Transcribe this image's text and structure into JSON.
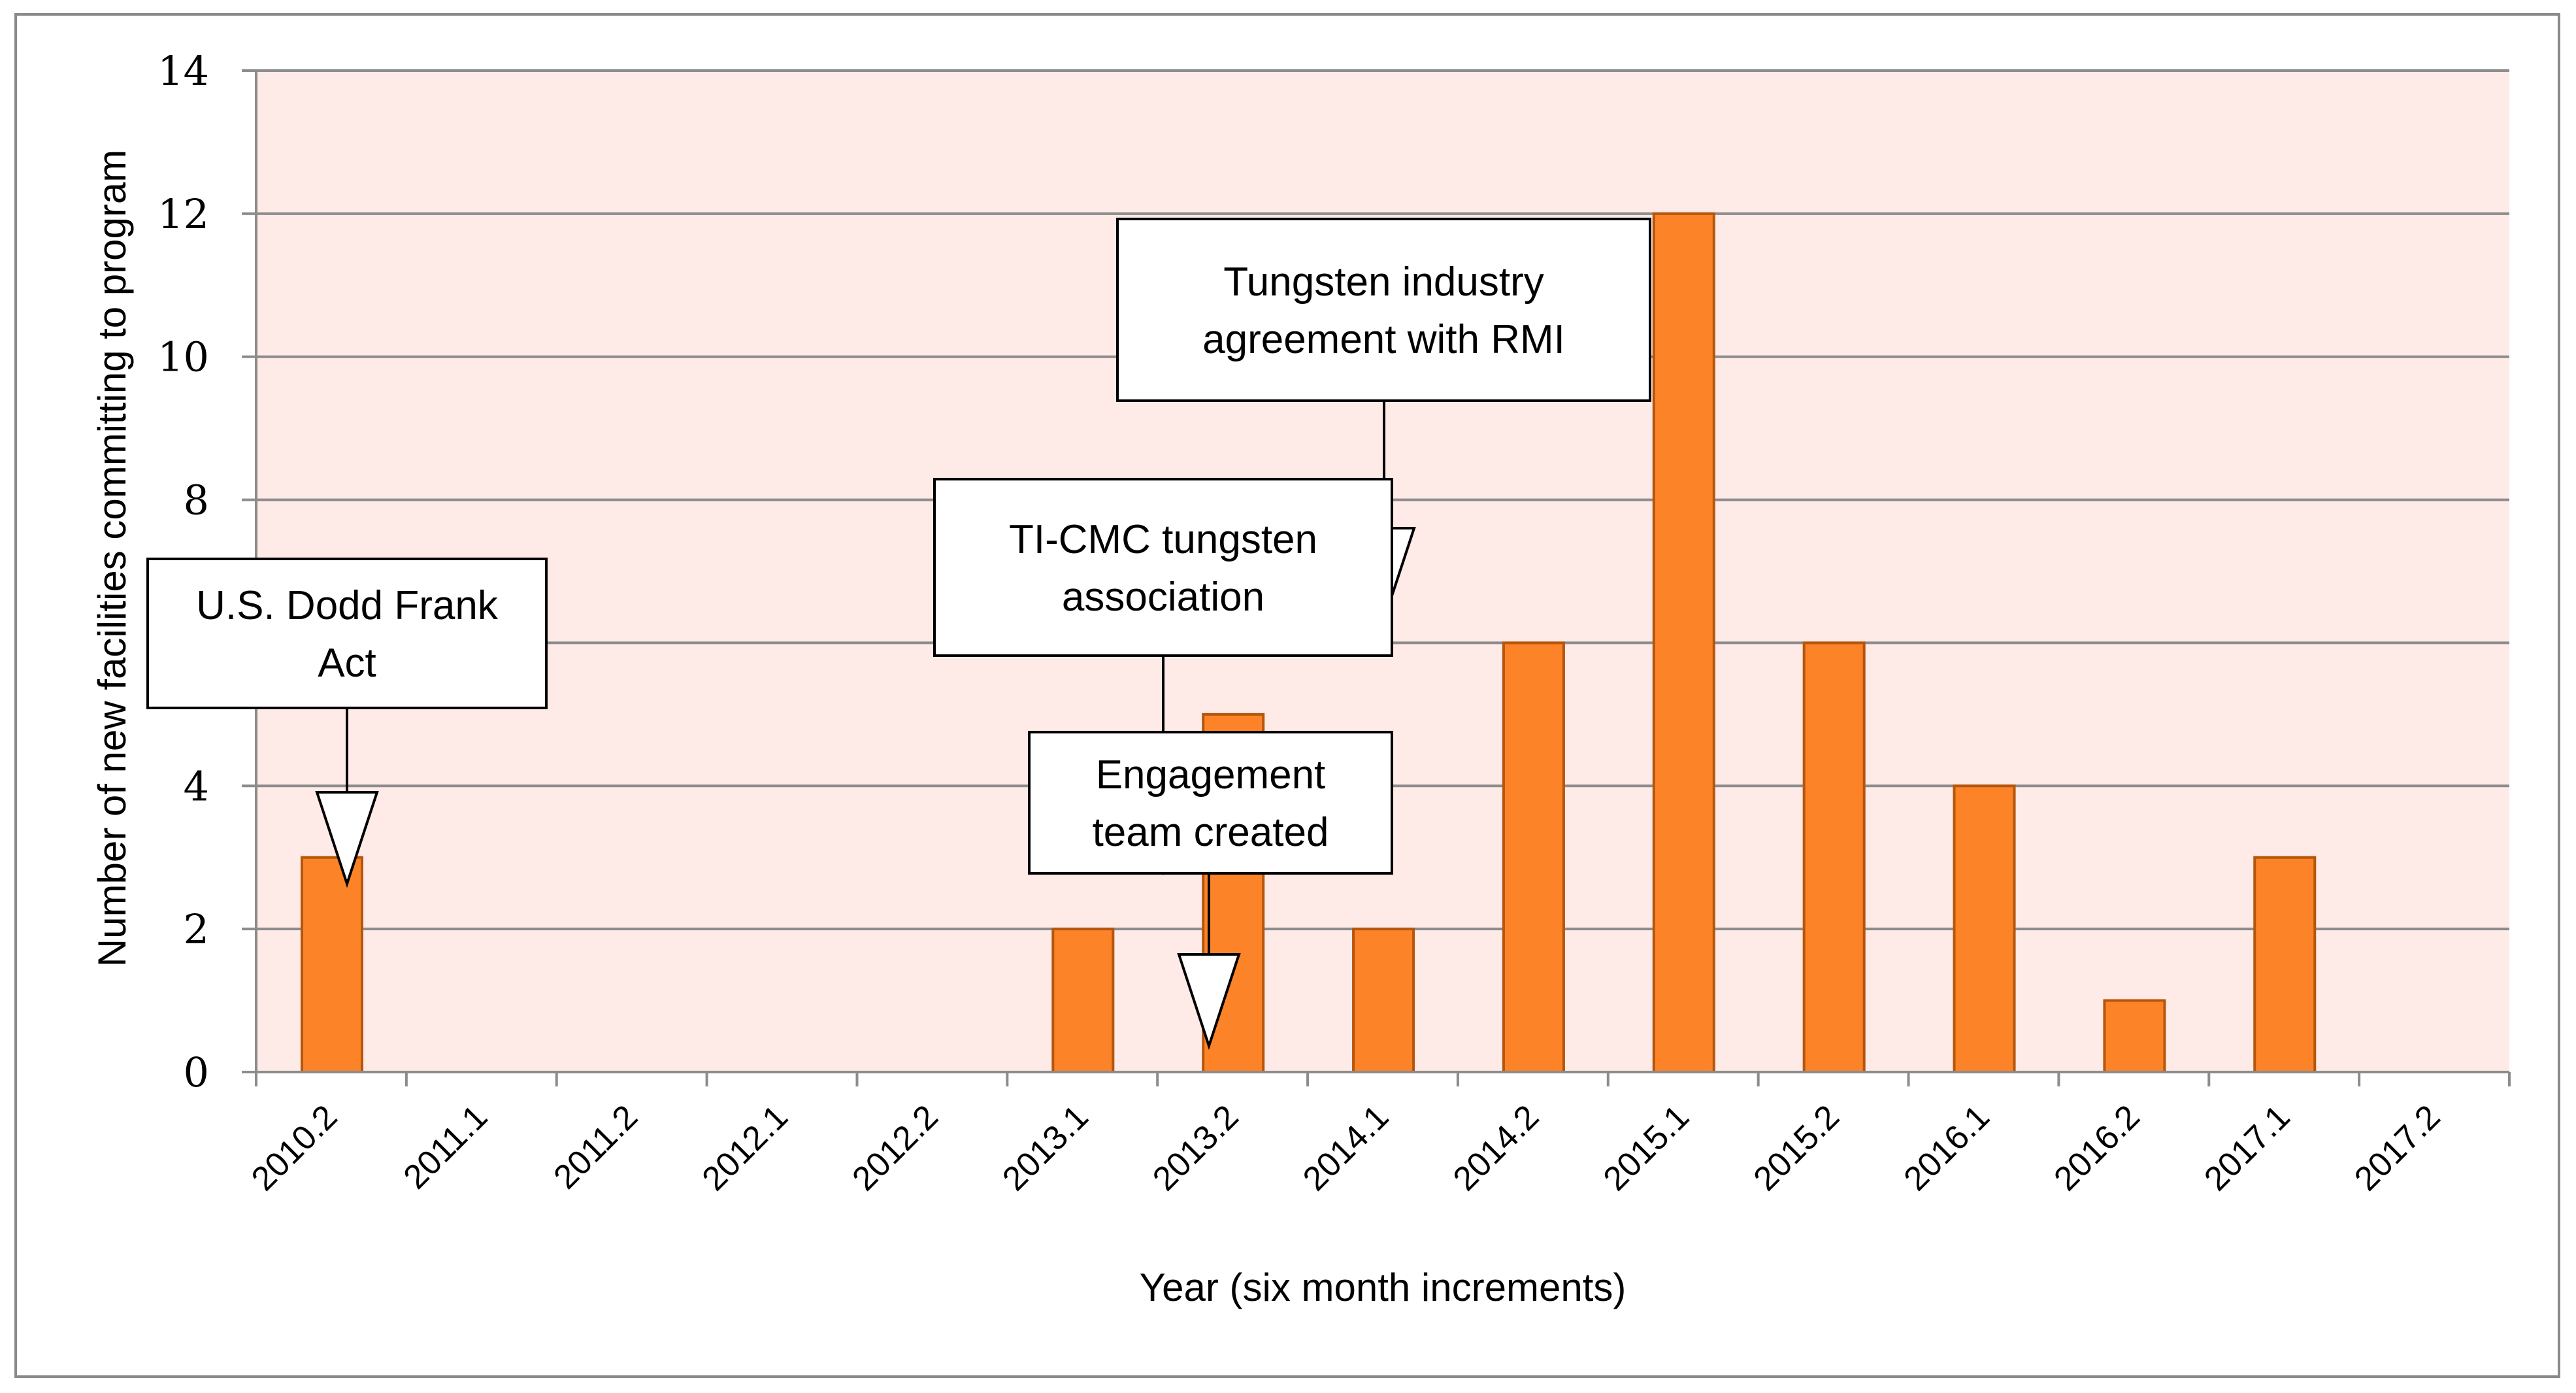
{
  "chart_data": {
    "type": "bar",
    "categories": [
      "2010.2",
      "2011.1",
      "2011.2",
      "2012.1",
      "2012.2",
      "2013.1",
      "2013.2",
      "2014.1",
      "2014.2",
      "2015.1",
      "2015.2",
      "2016.1",
      "2016.2",
      "2017.1",
      "2017.2"
    ],
    "values": [
      3,
      0,
      0,
      0,
      0,
      2,
      5,
      2,
      6,
      12,
      6,
      4,
      1,
      3,
      0
    ],
    "title": "",
    "xlabel": "Year (six month increments)",
    "ylabel": "Number of new facilities committing to program",
    "ylim": [
      0,
      14
    ],
    "yticks": [
      0,
      2,
      4,
      6,
      8,
      10,
      12,
      14
    ],
    "ytick_labels": [
      "0",
      "2",
      "4",
      "",
      "8",
      "10",
      "12",
      "14"
    ],
    "grid": true,
    "legend": "none",
    "colors": {
      "bar_fill": "#fd8328",
      "bar_stroke": "#b5560c",
      "plot_background": "#feeae7",
      "gridline": "#8c8c8c",
      "axis": "#8c8c8c"
    },
    "annotations": [
      {
        "lines": [
          "U.S. Dodd Frank",
          "Act"
        ],
        "points_to": "2010.2"
      },
      {
        "lines": [
          "TI-CMC tungsten",
          "association"
        ],
        "points_to": "2013.2"
      },
      {
        "lines": [
          "Engagement",
          "team created"
        ],
        "points_to": "2013.2"
      },
      {
        "lines": [
          "Tungsten industry",
          "agreement with RMI"
        ],
        "points_to": "2014.1"
      }
    ]
  }
}
